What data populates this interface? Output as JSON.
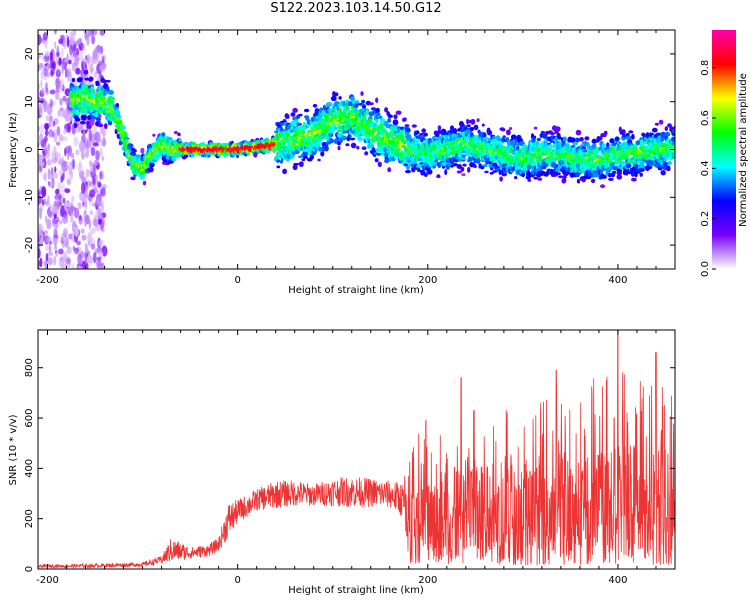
{
  "title": "S122.2023.103.14.50.G12",
  "chart_data": [
    {
      "type": "heatmap",
      "xlabel": "Height of straight line (km)",
      "ylabel": "Frequency (Hz)",
      "xlim": [
        -210,
        460
      ],
      "ylim": [
        -25,
        25
      ],
      "xticks": [
        -200,
        0,
        200,
        400
      ],
      "yticks": [
        -20,
        -10,
        0,
        10,
        20
      ],
      "colorbar": {
        "label": "Normalized spectral amplitude",
        "range": [
          0.0,
          0.95
        ],
        "ticks": [
          0.0,
          0.2,
          0.4,
          0.6,
          0.8
        ],
        "colormap": [
          "#ffffff",
          "#7700ff",
          "#0000ff",
          "#00ffff",
          "#00ff00",
          "#ffff00",
          "#ff0000",
          "#ff00aa"
        ]
      },
      "ridge": {
        "x": [
          -170,
          -160,
          -150,
          -140,
          -130,
          -120,
          -110,
          -100,
          -90,
          -80,
          -70,
          -50,
          -20,
          0,
          20,
          40,
          60,
          80,
          100,
          120,
          140,
          160,
          180,
          200,
          220,
          240,
          260,
          280,
          300,
          320,
          340,
          360,
          380,
          400,
          420,
          440,
          455
        ],
        "y": [
          10,
          11,
          10,
          10,
          8,
          3,
          -3,
          -4,
          -1,
          1,
          0,
          0,
          0,
          0,
          0.5,
          1,
          2,
          3,
          6,
          7,
          4,
          2,
          0,
          -1,
          0,
          1,
          0,
          -1,
          -2,
          -1,
          -1,
          -2,
          -2,
          -1,
          -1,
          0,
          0
        ]
      }
    },
    {
      "type": "line",
      "xlabel": "Height of straight line (km)",
      "ylabel": "SNR (10 * v/v)",
      "xlim": [
        -210,
        460
      ],
      "ylim": [
        0,
        950
      ],
      "xticks": [
        -200,
        0,
        200,
        400
      ],
      "yticks": [
        0,
        200,
        400,
        600,
        800
      ],
      "color": "#ee3333",
      "envelope": {
        "x": [
          -210,
          -150,
          -100,
          -80,
          -70,
          -50,
          -30,
          -20,
          -10,
          0,
          20,
          40,
          60,
          80,
          100,
          120,
          140,
          160,
          175,
          180,
          200,
          250,
          300,
          350,
          400,
          450,
          460
        ],
        "low": [
          5,
          5,
          10,
          20,
          25,
          40,
          50,
          70,
          120,
          180,
          230,
          240,
          250,
          250,
          250,
          245,
          245,
          240,
          200,
          20,
          20,
          20,
          15,
          15,
          20,
          15,
          15
        ],
        "high": [
          20,
          25,
          30,
          60,
          150,
          100,
          110,
          140,
          300,
          300,
          340,
          380,
          380,
          360,
          390,
          400,
          390,
          380,
          380,
          520,
          580,
          680,
          650,
          700,
          820,
          800,
          760
        ]
      },
      "peaks": [
        {
          "x": 198,
          "y": 590
        },
        {
          "x": 235,
          "y": 760
        },
        {
          "x": 335,
          "y": 790
        },
        {
          "x": 400,
          "y": 950
        },
        {
          "x": 440,
          "y": 860
        }
      ]
    }
  ]
}
